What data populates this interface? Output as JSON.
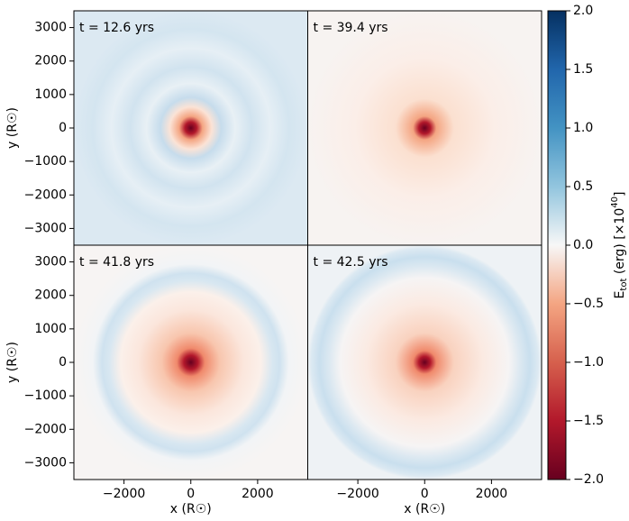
{
  "chart_data": [
    {
      "type": "heatmap",
      "annotation": "t = 12.6 yrs",
      "xlim": [
        -3500,
        3500
      ],
      "ylim": [
        -3500,
        3500
      ],
      "ylabel": "y (R☉)",
      "yticks": [
        {
          "value": -3000,
          "label": "−3000"
        },
        {
          "value": -2000,
          "label": "−2000"
        },
        {
          "value": -1000,
          "label": "−1000"
        },
        0,
        1000,
        2000,
        3000
      ]
    },
    {
      "type": "heatmap",
      "annotation": "t = 39.4 yrs",
      "xlim": [
        -3500,
        3500
      ],
      "ylim": [
        -3500,
        3500
      ]
    },
    {
      "type": "heatmap",
      "annotation": "t = 41.8 yrs",
      "xlim": [
        -3500,
        3500
      ],
      "ylim": [
        -3500,
        3500
      ],
      "ylabel": "y (R☉)",
      "xlabel": "x (R☉)",
      "yticks": [
        {
          "value": -3000,
          "label": "−3000"
        },
        {
          "value": -2000,
          "label": "−2000"
        },
        {
          "value": -1000,
          "label": "−1000"
        },
        0,
        1000,
        2000,
        3000
      ],
      "xticks": [
        {
          "value": -2000,
          "label": "−2000"
        },
        0,
        2000
      ]
    },
    {
      "type": "heatmap",
      "annotation": "t = 42.5 yrs",
      "xlim": [
        -3500,
        3500
      ],
      "ylim": [
        -3500,
        3500
      ],
      "xlabel": "x (R☉)",
      "xticks": [
        {
          "value": -2000,
          "label": "−2000"
        },
        0,
        2000
      ]
    },
    {
      "type": "colorbar",
      "label": {
        "main": "E",
        "sub": "tot",
        "rest": " (erg) [×10",
        "sup": "40",
        "end": "]"
      },
      "clim": [
        -2,
        2
      ],
      "ticks": [
        {
          "value": -2,
          "label": "−2.0"
        },
        {
          "value": -1.5,
          "label": "−1.5"
        },
        {
          "value": -1,
          "label": "−1.0"
        },
        {
          "value": -0.5,
          "label": "−0.5"
        },
        {
          "value": 0,
          "label": "0.0"
        },
        0.5,
        {
          "value": 1,
          "label": "1.0"
        },
        1.5,
        {
          "value": 2,
          "label": "2.0"
        }
      ]
    }
  ]
}
